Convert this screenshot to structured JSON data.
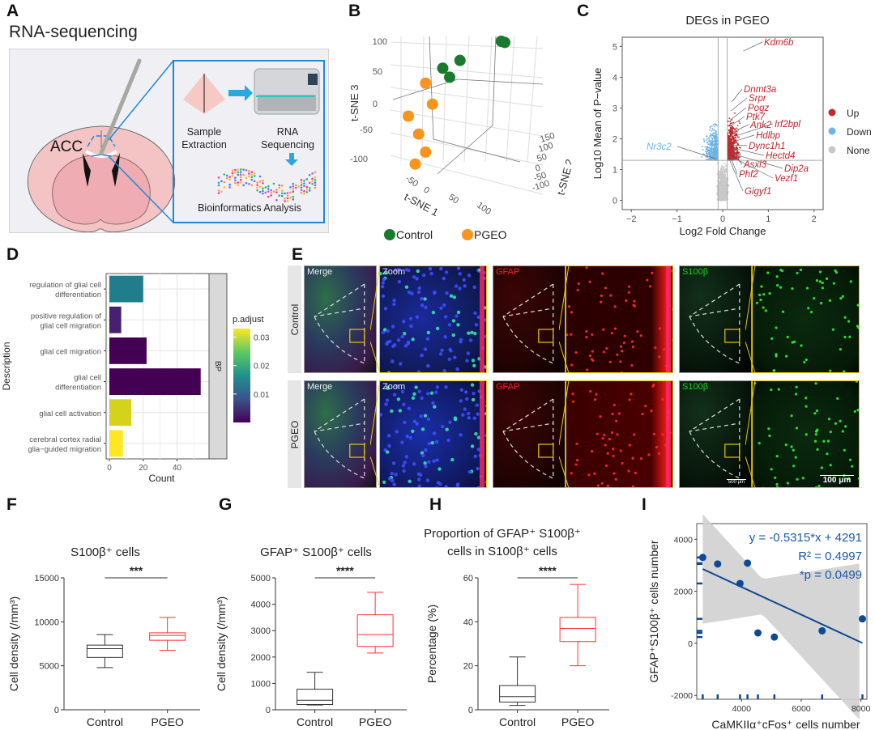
{
  "panels": {
    "A": {
      "letter": "A",
      "title": "RNA-sequencing",
      "region_label": "ACC",
      "steps": [
        "Sample Extraction",
        "RNA Sequencing",
        "Bioinformatics Analysis"
      ],
      "step_lines": {
        "sample": [
          "Sample",
          "Extraction"
        ],
        "rna": [
          "RNA",
          "Sequencing"
        ],
        "bio": "Bioinformatics Analysis"
      },
      "colors": {
        "frame": "#1e88d6",
        "brain": "#f4c2c2",
        "arrow": "#29a8e0"
      }
    },
    "B": {
      "letter": "B",
      "legend": [
        {
          "label": "Control",
          "color": "#1a7a2e"
        },
        {
          "label": "PGEO",
          "color": "#f7941d"
        }
      ]
    },
    "C": {
      "letter": "C"
    },
    "D": {
      "letter": "D"
    },
    "E": {
      "letter": "E",
      "rows": [
        "Control",
        "PGEO"
      ],
      "columns": [
        "Merge",
        "Zoom",
        "GFAP",
        "",
        "S100β",
        ""
      ],
      "scale_bars": [
        "500 μm",
        "100 μm"
      ],
      "colors": {
        "frame": "#e8c800",
        "gfap": "#ff1a1a",
        "s100": "#22cc22"
      }
    },
    "F": {
      "letter": "F"
    },
    "G": {
      "letter": "G"
    },
    "H": {
      "letter": "H"
    },
    "I": {
      "letter": "I"
    }
  },
  "chart_data": [
    {
      "id": "B",
      "type": "scatter",
      "title": "",
      "xlabel": "t-SNE 1",
      "ylabel": "t-SNE 2",
      "zlabel": "t-SNE 3",
      "x_ticks": [
        "-50",
        "0",
        "50",
        "100"
      ],
      "y_ticks": [
        "-100",
        "-50",
        "0",
        "50",
        "100",
        "150"
      ],
      "z_ticks": [
        "-100",
        "-50",
        "0",
        "50",
        "100"
      ],
      "series": [
        {
          "name": "Control",
          "color": "#1a7a2e",
          "points": [
            [
              95,
              100
            ],
            [
              100,
              98
            ],
            [
              35,
              68
            ],
            [
              10,
              55
            ],
            [
              20,
              40
            ]
          ]
        },
        {
          "name": "PGEO",
          "color": "#f7941d",
          "points": [
            [
              -15,
              30
            ],
            [
              -5,
              -5
            ],
            [
              -40,
              -25
            ],
            [
              -25,
              -55
            ],
            [
              -15,
              -85
            ],
            [
              -30,
              -105
            ]
          ]
        }
      ]
    },
    {
      "id": "C",
      "type": "scatter",
      "title": "DEGs in PGEO",
      "xlabel": "Log2 Fold Change",
      "ylabel": "Log10 Mean of P−value",
      "xlim": [
        -2.2,
        2.2
      ],
      "ylim": [
        -0.3,
        5.3
      ],
      "x_ticks": [
        "−2",
        "−1",
        "0",
        "1",
        "2"
      ],
      "y_ticks": [
        "0",
        "1",
        "2",
        "3",
        "4",
        "5"
      ],
      "thresholds": {
        "x": [
          -0.1,
          0.1
        ],
        "y": 1.3
      },
      "legend": [
        {
          "label": "Up",
          "color": "#c0282d"
        },
        {
          "label": "Down",
          "color": "#6bb4e4"
        },
        {
          "label": "None",
          "color": "#c8c8c8"
        }
      ],
      "labeled_genes": [
        {
          "name": "Kdm6b",
          "x": 0.45,
          "y": 4.85,
          "group": "Up"
        },
        {
          "name": "Dnmt3a",
          "x": 0.2,
          "y": 3.2,
          "group": "Up"
        },
        {
          "name": "Srpr",
          "x": 0.18,
          "y": 2.9,
          "group": "Up"
        },
        {
          "name": "Pogz",
          "x": 0.16,
          "y": 2.6,
          "group": "Up"
        },
        {
          "name": "Ptk7",
          "x": 0.15,
          "y": 2.4,
          "group": "Up"
        },
        {
          "name": "Ank2",
          "x": 0.2,
          "y": 2.2,
          "group": "Up"
        },
        {
          "name": "Irf2bpl",
          "x": 0.3,
          "y": 2.1,
          "group": "Up"
        },
        {
          "name": "Hdlbp",
          "x": 0.22,
          "y": 1.9,
          "group": "Up"
        },
        {
          "name": "Dync1h1",
          "x": 0.2,
          "y": 1.8,
          "group": "Up"
        },
        {
          "name": "Hectd4",
          "x": 0.22,
          "y": 1.7,
          "group": "Up"
        },
        {
          "name": "Asxl3",
          "x": 0.18,
          "y": 1.6,
          "group": "Up"
        },
        {
          "name": "Dip2a",
          "x": 0.25,
          "y": 1.5,
          "group": "Up"
        },
        {
          "name": "Phf2",
          "x": 0.16,
          "y": 1.45,
          "group": "Up"
        },
        {
          "name": "Vezf1",
          "x": 0.22,
          "y": 1.4,
          "group": "Up"
        },
        {
          "name": "Gigyf1",
          "x": 0.14,
          "y": 1.35,
          "group": "Up"
        },
        {
          "name": "Nr3c2",
          "x": -0.15,
          "y": 1.35,
          "group": "Down"
        }
      ]
    },
    {
      "id": "D",
      "type": "bar",
      "orientation": "horizontal",
      "xlabel": "Count",
      "ylabel": "Description",
      "facet_label": "BP",
      "xlim": [
        0,
        57
      ],
      "x_ticks": [
        "0",
        "20",
        "40"
      ],
      "categories": [
        "regulation of glial cell differentiation",
        "positive regulation of glial cell migration",
        "glial cell migration",
        "glial cell differentiation",
        "glial cell activation",
        "cerebral cortex radial glia−guided migration"
      ],
      "category_lines": [
        [
          "regulation of glial cell",
          "differentiation"
        ],
        [
          "positive regulation of",
          "glial cell migration"
        ],
        [
          "glial cell migration"
        ],
        [
          "glial cell",
          "differentiation"
        ],
        [
          "glial cell activation"
        ],
        [
          "cerebral cortex radial",
          "glia−guided migration"
        ]
      ],
      "values": [
        20,
        7,
        22,
        54,
        13,
        8
      ],
      "p_adjust": [
        0.012,
        0.003,
        0.001,
        0.001,
        0.029,
        0.032
      ],
      "colors": [
        "#1f7d8c",
        "#46216f",
        "#440154",
        "#440154",
        "#d4d21a",
        "#fde725"
      ],
      "colorbar": {
        "title": "p.adjust",
        "ticks": [
          "0.03",
          "0.02",
          "0.01"
        ],
        "range": [
          0.0,
          0.033
        ]
      }
    },
    {
      "id": "F",
      "type": "box",
      "title": "S100β⁺ cells",
      "ylabel": "Cell density (/mm³)",
      "ylim": [
        0,
        15000
      ],
      "y_ticks": [
        "0",
        "5000",
        "10000",
        "15000"
      ],
      "categories": [
        "Control",
        "PGEO"
      ],
      "significance": "***",
      "boxes": [
        {
          "name": "Control",
          "min": 4800,
          "q1": 5950,
          "median": 6950,
          "q3": 7350,
          "max": 8550,
          "color": "#333333"
        },
        {
          "name": "PGEO",
          "min": 6750,
          "q1": 7900,
          "median": 8450,
          "q3": 8750,
          "max": 10500,
          "color": "#ff3333"
        }
      ]
    },
    {
      "id": "G",
      "type": "box",
      "title": "GFAP⁺ S100β⁺ cells",
      "ylabel": "Cell density (/mm³)",
      "ylim": [
        0,
        5000
      ],
      "y_ticks": [
        "0",
        "1000",
        "2000",
        "3000",
        "4000",
        "5000"
      ],
      "categories": [
        "Control",
        "PGEO"
      ],
      "significance": "****",
      "boxes": [
        {
          "name": "Control",
          "min": 180,
          "q1": 200,
          "median": 360,
          "q3": 780,
          "max": 1420,
          "color": "#333333"
        },
        {
          "name": "PGEO",
          "min": 2150,
          "q1": 2400,
          "median": 2850,
          "q3": 3600,
          "max": 4450,
          "color": "#ff3333"
        }
      ]
    },
    {
      "id": "H",
      "type": "box",
      "title": "Proportion of GFAP⁺ S100β⁺ cells in S100β⁺ cells",
      "title_lines": [
        "Proportion of GFAP⁺ S100β⁺",
        "cells in S100β⁺ cells"
      ],
      "ylabel": "Percentage (%)",
      "ylim": [
        0,
        60
      ],
      "y_ticks": [
        "0",
        "20",
        "40",
        "60"
      ],
      "categories": [
        "Control",
        "PGEO"
      ],
      "significance": "****",
      "boxes": [
        {
          "name": "Control",
          "min": 2,
          "q1": 3.5,
          "median": 6,
          "q3": 11,
          "max": 24,
          "color": "#333333"
        },
        {
          "name": "PGEO",
          "min": 20,
          "q1": 31,
          "median": 37,
          "q3": 42,
          "max": 57,
          "color": "#ff3333"
        }
      ]
    },
    {
      "id": "I",
      "type": "scatter",
      "xlabel": "CaMKIIα⁺cFos⁺ cells number",
      "ylabel": "GFAP⁺S100β⁺ cells number",
      "xlim": [
        2500,
        8200
      ],
      "ylim": [
        -2150,
        4600
      ],
      "x_ticks": [
        "4000",
        "6000",
        "8000"
      ],
      "y_ticks": [
        "-2000",
        "0",
        "2000",
        "4000"
      ],
      "x": [
        2700,
        3200,
        3950,
        4200,
        4550,
        5100,
        6700,
        8050
      ],
      "y": [
        3300,
        3050,
        2300,
        3080,
        400,
        240,
        480,
        940
      ],
      "fit": {
        "slope": -0.5315,
        "intercept": 4291
      },
      "annotations": [
        "y = -0.5315*x + 4291",
        "R² = 0.4997",
        "*p = 0.0499"
      ],
      "color": "#0d4a94"
    }
  ]
}
